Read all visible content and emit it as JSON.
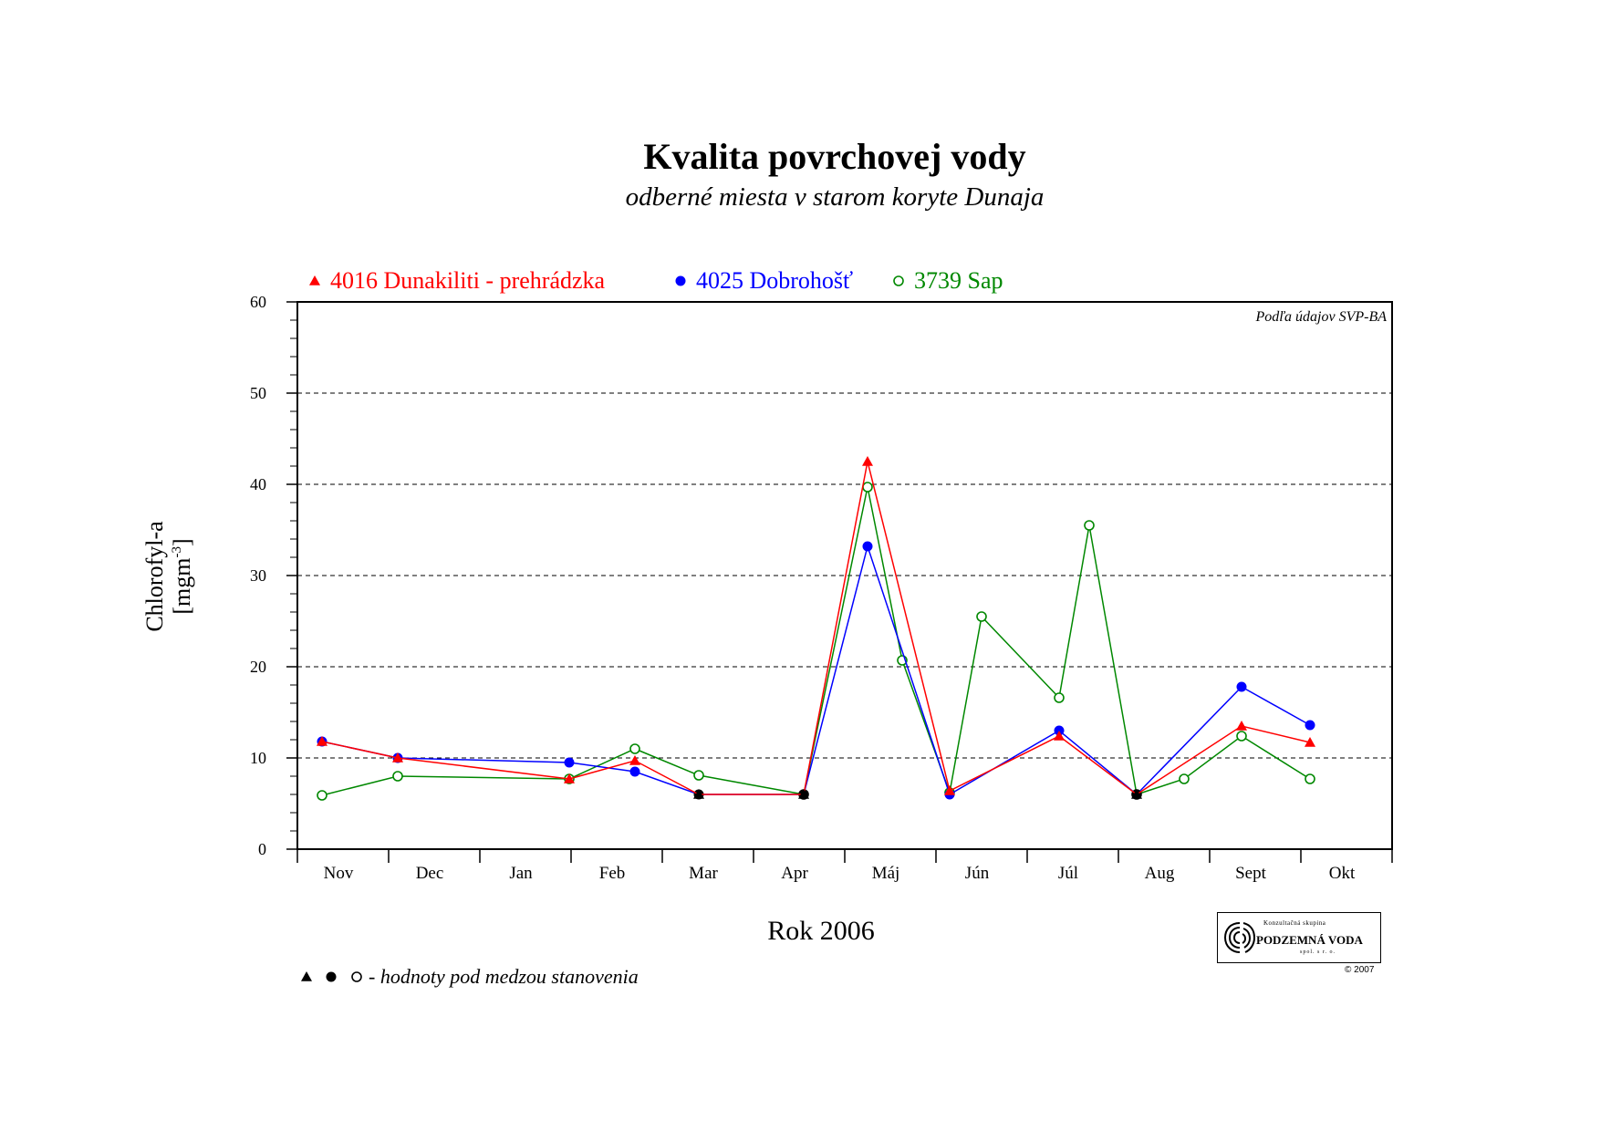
{
  "title": "Kvalita povrchovej vody",
  "subtitle": "odberné miesta v starom koryte Dunaja",
  "source_note": "Podľa údajov SVP-BA",
  "footnote": {
    "symbols": "▲,●,○",
    "text": " - hodnoty pod medzou stanovenia"
  },
  "logo": {
    "line1": "Konzultačná skupina",
    "line2": "PODZEMNÁ VODA",
    "line3": "spol. s r. o.",
    "copyright": "© 2007"
  },
  "chart_data": {
    "type": "line",
    "xlabel": "Rok 2006",
    "ylabel_line1": "Chlorofyl-a",
    "ylabel_unit_pre": "[mgm",
    "ylabel_unit_sup": "-3",
    "ylabel_unit_post": "]",
    "ylim": [
      0,
      60
    ],
    "yticks": [
      0,
      10,
      20,
      30,
      40,
      50,
      60
    ],
    "grid": true,
    "legend_position": "top-left",
    "x_range_months": [
      0,
      12
    ],
    "months": [
      "Nov",
      "Dec",
      "Jan",
      "Feb",
      "Mar",
      "Apr",
      "Máj",
      "Jún",
      "Júl",
      "Aug",
      "Sept",
      "Okt"
    ],
    "series": [
      {
        "name": "4016 Dunakiliti - prehrádzka",
        "color": "#ff0000",
        "marker": "triangle",
        "points": [
          {
            "x": 0.27,
            "y": 11.8
          },
          {
            "x": 1.1,
            "y": 10.0
          },
          {
            "x": 2.98,
            "y": 7.7
          },
          {
            "x": 3.7,
            "y": 9.7
          },
          {
            "x": 4.4,
            "y": 6.0,
            "below_limit": true
          },
          {
            "x": 5.55,
            "y": 6.0,
            "below_limit": true
          },
          {
            "x": 6.25,
            "y": 42.5
          },
          {
            "x": 7.15,
            "y": 6.4
          },
          {
            "x": 8.35,
            "y": 12.4
          },
          {
            "x": 9.2,
            "y": 6.0,
            "below_limit": true
          },
          {
            "x": 10.35,
            "y": 13.5
          },
          {
            "x": 11.1,
            "y": 11.7
          }
        ]
      },
      {
        "name": "4025 Dobrohošť",
        "color": "#0000ff",
        "marker": "circle-filled",
        "points": [
          {
            "x": 0.27,
            "y": 11.8
          },
          {
            "x": 1.1,
            "y": 10.0
          },
          {
            "x": 2.98,
            "y": 9.5
          },
          {
            "x": 3.7,
            "y": 8.5
          },
          {
            "x": 4.4,
            "y": 6.0,
            "below_limit": true
          },
          {
            "x": 5.55,
            "y": 6.0,
            "below_limit": true
          },
          {
            "x": 6.25,
            "y": 33.2
          },
          {
            "x": 7.15,
            "y": 6.0
          },
          {
            "x": 8.35,
            "y": 13.0
          },
          {
            "x": 9.2,
            "y": 6.0,
            "below_limit": true
          },
          {
            "x": 10.35,
            "y": 17.8
          },
          {
            "x": 11.1,
            "y": 13.6
          }
        ]
      },
      {
        "name": "3739 Sap",
        "color": "#008800",
        "marker": "circle-open",
        "points": [
          {
            "x": 0.27,
            "y": 5.9
          },
          {
            "x": 1.1,
            "y": 8.0
          },
          {
            "x": 2.98,
            "y": 7.7
          },
          {
            "x": 3.7,
            "y": 11.0
          },
          {
            "x": 4.4,
            "y": 8.1
          },
          {
            "x": 5.55,
            "y": 6.0,
            "below_limit": true
          },
          {
            "x": 6.25,
            "y": 39.7
          },
          {
            "x": 6.63,
            "y": 20.7
          },
          {
            "x": 7.15,
            "y": 6.2
          },
          {
            "x": 7.5,
            "y": 25.5
          },
          {
            "x": 8.35,
            "y": 16.6
          },
          {
            "x": 8.68,
            "y": 35.5
          },
          {
            "x": 9.2,
            "y": 6.0,
            "below_limit": true
          },
          {
            "x": 9.72,
            "y": 7.7
          },
          {
            "x": 10.35,
            "y": 12.4
          },
          {
            "x": 11.1,
            "y": 7.7
          }
        ]
      }
    ]
  }
}
